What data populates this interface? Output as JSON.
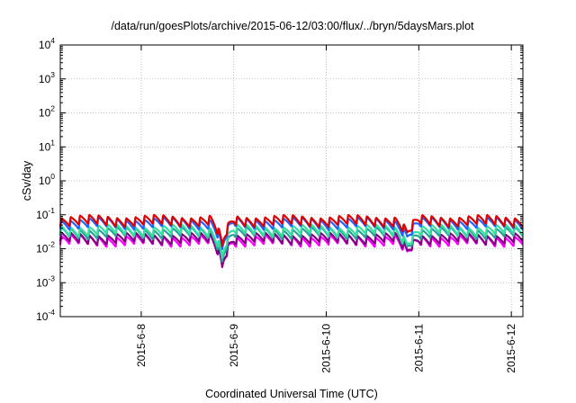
{
  "colors": {
    "magenta": "#ff00ff",
    "purple": "#800080",
    "teal": "#2aa198",
    "green": "#33e0a0",
    "blue": "#1e64ff",
    "red": "#e00000"
  },
  "chart_data": {
    "type": "line",
    "title": "/data/run/goesPlots/archive/2015-06-12/03:00/flux/../bryn/5daysMars.plot",
    "xlabel": "Coordinated Universal Time (UTC)",
    "ylabel": "cSv/day",
    "yscale": "log",
    "ylim": [
      0.0001,
      10000
    ],
    "xlim": [
      "2015-06-07 03:00",
      "2015-06-12 03:00"
    ],
    "grid": true,
    "y_ticks": [
      {
        "base": "10",
        "exp": "-4",
        "value": 0.0001
      },
      {
        "base": "10",
        "exp": "-3",
        "value": 0.001
      },
      {
        "base": "10",
        "exp": "-2",
        "value": 0.01
      },
      {
        "base": "10",
        "exp": "-1",
        "value": 0.1
      },
      {
        "base": "10",
        "exp": "0",
        "value": 1
      },
      {
        "base": "10",
        "exp": "1",
        "value": 10
      },
      {
        "base": "10",
        "exp": "2",
        "value": 100
      },
      {
        "base": "10",
        "exp": "3",
        "value": 1000
      },
      {
        "base": "10",
        "exp": "4",
        "value": 10000
      }
    ],
    "x_ticks": [
      {
        "label": "2015-6-8",
        "value": "2015-06-08 00:00"
      },
      {
        "label": "2015-6-9",
        "value": "2015-06-09 00:00"
      },
      {
        "label": "2015-6-10",
        "value": "2015-06-10 00:00"
      },
      {
        "label": "2015-6-11",
        "value": "2015-06-11 00:00"
      },
      {
        "label": "2015-6-12",
        "value": "2015-06-12 00:00"
      }
    ],
    "series": [
      {
        "color": "#ff00ff",
        "level": 0.013
      },
      {
        "color": "#800080",
        "level": 0.015
      },
      {
        "color": "#2aa198",
        "level": 0.022
      },
      {
        "color": "#33e0a0",
        "level": 0.026
      },
      {
        "color": "#1e64ff",
        "level": 0.042
      },
      {
        "color": "#e00000",
        "level": 0.05
      }
    ],
    "notes": [
      "sawtooth pattern with ~10 cycles per day",
      "dips near 2015-06-08 21:00 and 2015-06-10 21:00"
    ]
  }
}
